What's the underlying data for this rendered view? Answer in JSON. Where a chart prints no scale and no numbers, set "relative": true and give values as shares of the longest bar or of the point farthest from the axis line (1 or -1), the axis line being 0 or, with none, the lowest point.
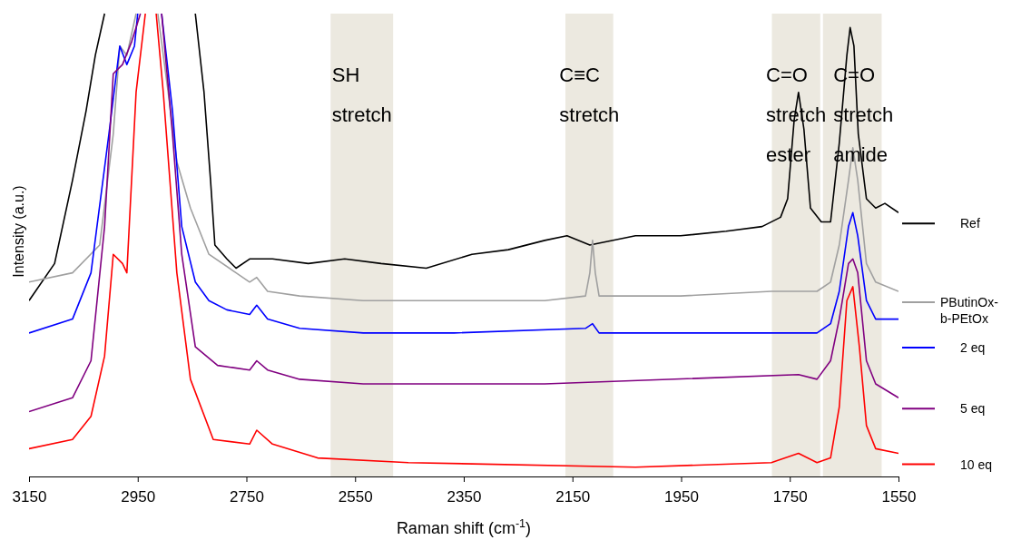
{
  "chart_data": {
    "type": "line",
    "relative": true,
    "xlabel": "Raman shift (cm$^{-1}$)",
    "ylabel": "Intensity (a.u.)",
    "xlim": [
      3150,
      1550
    ],
    "xticks": [
      3150,
      2950,
      2750,
      2550,
      2350,
      2150,
      1950,
      1750,
      1550
    ],
    "legend": "right",
    "marker": "none",
    "line_style": "solid",
    "grid": false,
    "bands": [
      {
        "axis": "x",
        "from": 2595,
        "to": 2480,
        "label": "SH stretch",
        "color": "#ece9e0"
      },
      {
        "axis": "x",
        "from": 2163,
        "to": 2075,
        "label": "C≡C stretch",
        "color": "#ece9e0"
      },
      {
        "axis": "x",
        "from": 1783,
        "to": 1694,
        "label": "C=O stretch ester",
        "color": "#ece9e0"
      },
      {
        "axis": "x",
        "from": 1689,
        "to": 1581,
        "label": "C=O stretch amide",
        "color": "#ece9e0"
      }
    ],
    "series": [
      {
        "name": "Ref",
        "color": "#000000",
        "x": [
          3150,
          3103,
          3070,
          3045,
          3028,
          3011,
          2990,
          2844,
          2828,
          2816,
          2808,
          2786,
          2769,
          2744,
          2702,
          2636,
          2569,
          2502,
          2419,
          2335,
          2268,
          2201,
          2160,
          2118,
          2034,
          1951,
          1867,
          1801,
          1767,
          1754,
          1742,
          1734,
          1724,
          1712,
          1692,
          1675,
          1659,
          1645,
          1639,
          1632,
          1624,
          1609,
          1592,
          1575,
          1550
        ],
        "values": [
          0.38,
          0.46,
          0.64,
          0.79,
          0.91,
          1.0,
          null,
          1.0,
          0.83,
          0.64,
          0.5,
          0.47,
          0.45,
          0.47,
          0.47,
          0.46,
          0.47,
          0.46,
          0.45,
          0.48,
          0.49,
          0.51,
          0.52,
          0.5,
          0.52,
          0.52,
          0.53,
          0.54,
          0.56,
          0.6,
          0.77,
          0.83,
          0.75,
          0.58,
          0.55,
          0.55,
          0.72,
          0.91,
          0.97,
          0.93,
          0.74,
          0.6,
          0.58,
          0.59,
          0.57
        ]
      },
      {
        "name": "PButinOx-b-PEtOx",
        "color": "#a0a0a0",
        "x": [
          3150,
          3070,
          3020,
          2995,
          2983,
          2970,
          2953,
          2930,
          2913,
          2894,
          2878,
          2853,
          2819,
          2769,
          2744,
          2731,
          2711,
          2652,
          2535,
          2368,
          2201,
          2126,
          2118,
          2113,
          2108,
          2101,
          1951,
          1784,
          1700,
          1675,
          1659,
          1642,
          1634,
          1625,
          1609,
          1592,
          1550
        ],
        "values": [
          0.42,
          0.44,
          0.5,
          0.74,
          0.93,
          0.91,
          1.0,
          null,
          1.0,
          0.83,
          0.68,
          0.58,
          0.48,
          0.44,
          0.42,
          0.43,
          0.4,
          0.39,
          0.38,
          0.38,
          0.38,
          0.39,
          0.44,
          0.51,
          0.44,
          0.39,
          0.39,
          0.4,
          0.4,
          0.42,
          0.5,
          0.64,
          0.71,
          0.64,
          0.46,
          0.42,
          0.4
        ]
      },
      {
        "name": "2 eq",
        "color": "#0000ff",
        "x": [
          3150,
          3070,
          3036,
          3003,
          2983,
          2970,
          2956,
          2950,
          2930,
          2906,
          2886,
          2869,
          2844,
          2819,
          2786,
          2744,
          2731,
          2711,
          2652,
          2535,
          2368,
          2126,
          2113,
          2101,
          1700,
          1675,
          1659,
          1642,
          1634,
          1625,
          1609,
          1592,
          1550
        ],
        "values": [
          0.31,
          0.34,
          0.44,
          0.74,
          0.93,
          0.89,
          0.93,
          1.0,
          null,
          1.0,
          0.79,
          0.54,
          0.42,
          0.38,
          0.36,
          0.35,
          0.37,
          0.34,
          0.32,
          0.31,
          0.31,
          0.32,
          0.33,
          0.31,
          0.31,
          0.33,
          0.4,
          0.54,
          0.57,
          0.52,
          0.38,
          0.34,
          0.34
        ]
      },
      {
        "name": "5 eq",
        "color": "#800080",
        "x": [
          3150,
          3070,
          3036,
          3011,
          2995,
          2978,
          2961,
          2945,
          2930,
          2906,
          2886,
          2869,
          2844,
          2803,
          2744,
          2731,
          2711,
          2652,
          2535,
          2201,
          1734,
          1700,
          1675,
          1659,
          1642,
          1634,
          1625,
          1609,
          1592,
          1550
        ],
        "values": [
          0.14,
          0.17,
          0.25,
          0.54,
          0.87,
          0.89,
          0.94,
          1.0,
          null,
          1.0,
          0.74,
          0.48,
          0.28,
          0.24,
          0.23,
          0.25,
          0.23,
          0.21,
          0.2,
          0.2,
          0.22,
          0.21,
          0.25,
          0.34,
          0.46,
          0.47,
          0.44,
          0.25,
          0.2,
          0.17
        ]
      },
      {
        "name": "10 eq",
        "color": "#ff0000",
        "x": [
          3150,
          3070,
          3036,
          3011,
          2995,
          2978,
          2970,
          2953,
          2936,
          2925,
          2916,
          2903,
          2878,
          2853,
          2811,
          2744,
          2731,
          2702,
          2619,
          2452,
          2034,
          1784,
          1734,
          1700,
          1675,
          1659,
          1645,
          1634,
          1622,
          1609,
          1592,
          1550
        ],
        "values": [
          0.06,
          0.08,
          0.13,
          0.26,
          0.48,
          0.46,
          0.44,
          0.83,
          1.0,
          null,
          1.0,
          0.83,
          0.44,
          0.21,
          0.08,
          0.07,
          0.1,
          0.07,
          0.04,
          0.03,
          0.02,
          0.03,
          0.05,
          0.03,
          0.04,
          0.15,
          0.38,
          0.41,
          0.28,
          0.11,
          0.06,
          0.05
        ]
      }
    ]
  }
}
